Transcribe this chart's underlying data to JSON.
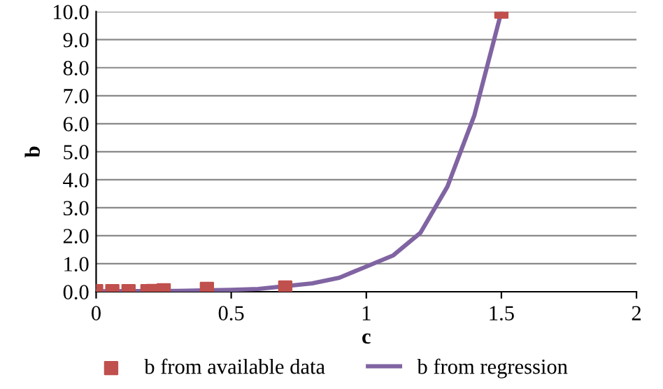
{
  "chart_data": {
    "type": "scatter",
    "xlabel": "c",
    "ylabel": "b",
    "xlim": [
      0,
      2
    ],
    "xticks": [
      0,
      0.5,
      1,
      1.5,
      2
    ],
    "ylim": [
      0,
      10
    ],
    "yticks": [
      {
        "value": 0,
        "label": "0.0"
      },
      {
        "value": 1,
        "label": "1.0"
      },
      {
        "value": 2,
        "label": "2.0"
      },
      {
        "value": 3,
        "label": "3.0"
      },
      {
        "value": 4,
        "label": "4.0"
      },
      {
        "value": 5,
        "label": "5.0"
      },
      {
        "value": 6,
        "label": "6.0"
      },
      {
        "value": 7,
        "label": "7.0"
      },
      {
        "value": 8,
        "label": "8.0"
      },
      {
        "value": 9,
        "label": "9.0"
      },
      {
        "value": 10,
        "label": "10.0"
      }
    ],
    "grid": "y",
    "legend": "bottom",
    "series": [
      {
        "name": "b from available data",
        "marker": "square",
        "color": "#c0504d",
        "x": [
          0,
          0.06,
          0.12,
          0.19,
          0.21,
          0.25,
          0.41,
          0.7,
          1.5
        ],
        "values": [
          0.02,
          0.02,
          0.02,
          0.02,
          0.03,
          0.05,
          0.1,
          0.15,
          10
        ]
      },
      {
        "name": "b from regression",
        "type": "line",
        "marker": "none",
        "color": "#8064a2",
        "x": [
          0,
          0.3,
          0.5,
          0.6,
          0.8,
          0.9,
          1,
          1.1,
          1.2,
          1.3,
          1.4,
          1.5
        ],
        "values": [
          0.02,
          0.03,
          0.07,
          0.1,
          0.3,
          0.5,
          0.9,
          1.3,
          2.1,
          3.75,
          6.3,
          10
        ]
      }
    ]
  }
}
